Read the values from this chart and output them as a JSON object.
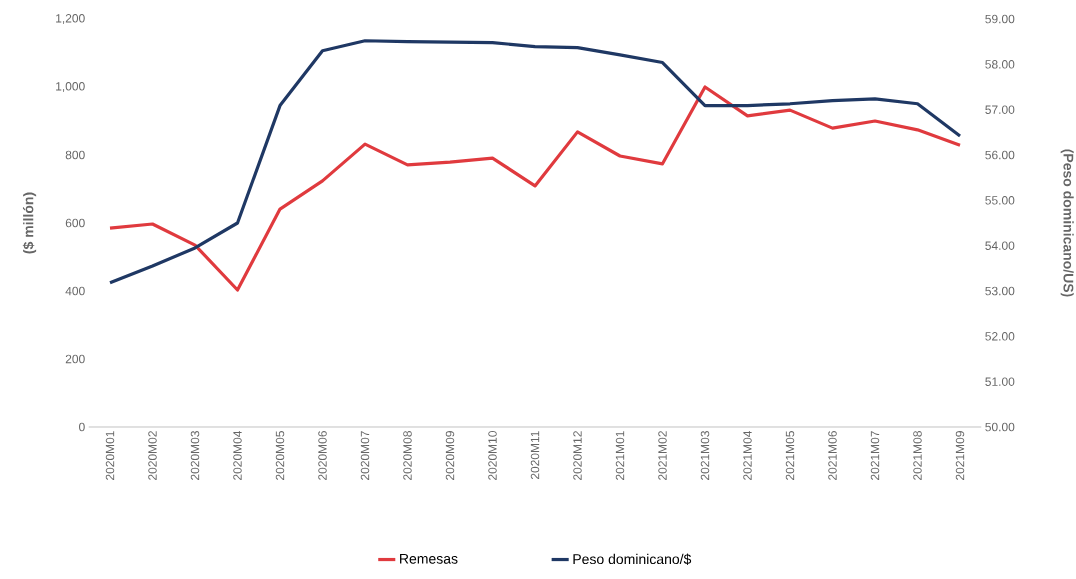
{
  "chart_data": {
    "type": "line",
    "categories": [
      "2020M01",
      "2020M02",
      "2020M03",
      "2020M04",
      "2020M05",
      "2020M06",
      "2020M07",
      "2020M08",
      "2020M09",
      "2020M10",
      "2020M11",
      "2020M12",
      "2021M01",
      "2021M02",
      "2021M03",
      "2021M04",
      "2021M05",
      "2021M06",
      "2021M07",
      "2021M08",
      "2021M09"
    ],
    "series": [
      {
        "name": "Remesas",
        "color": "#e03a3e",
        "values": [
          585,
          597,
          535,
          403,
          641,
          724,
          832,
          771,
          779,
          791,
          709,
          868,
          797,
          774,
          1000,
          915,
          932,
          879,
          900,
          874,
          829
        ]
      },
      {
        "name": "Peso dominicano/$",
        "color": "#1f3864",
        "axis": "y2",
        "values": [
          53.18,
          53.55,
          53.95,
          54.5,
          57.09,
          58.3,
          58.52,
          58.5,
          58.49,
          58.48,
          58.39,
          58.37,
          58.21,
          58.04,
          57.09,
          57.09,
          57.13,
          57.2,
          57.24,
          57.13,
          56.42
        ]
      }
    ],
    "ylabel": "($ millón)",
    "y2label": "(Peso dominicano/US)",
    "ylim": [
      0,
      1200
    ],
    "yticks": [
      0,
      200,
      400,
      600,
      800,
      {
        "value": 1000,
        "label": "1,000"
      },
      {
        "value": 1200,
        "label": "1,200"
      }
    ],
    "y2lim": [
      50,
      59
    ],
    "y2ticks": [
      {
        "value": 50,
        "label": "50.00"
      },
      {
        "value": 51,
        "label": "51.00"
      },
      {
        "value": 52,
        "label": "52.00"
      },
      {
        "value": 53,
        "label": "53.00"
      },
      {
        "value": 54,
        "label": "54.00"
      },
      {
        "value": 55,
        "label": "55.00"
      },
      {
        "value": 56,
        "label": "56.00"
      },
      {
        "value": 57,
        "label": "57.00"
      },
      {
        "value": 58,
        "label": "58.00"
      },
      {
        "value": 59,
        "label": "59.00"
      }
    ],
    "legend": "bottom",
    "grid": false,
    "marker": "none",
    "line_style": "solid"
  }
}
